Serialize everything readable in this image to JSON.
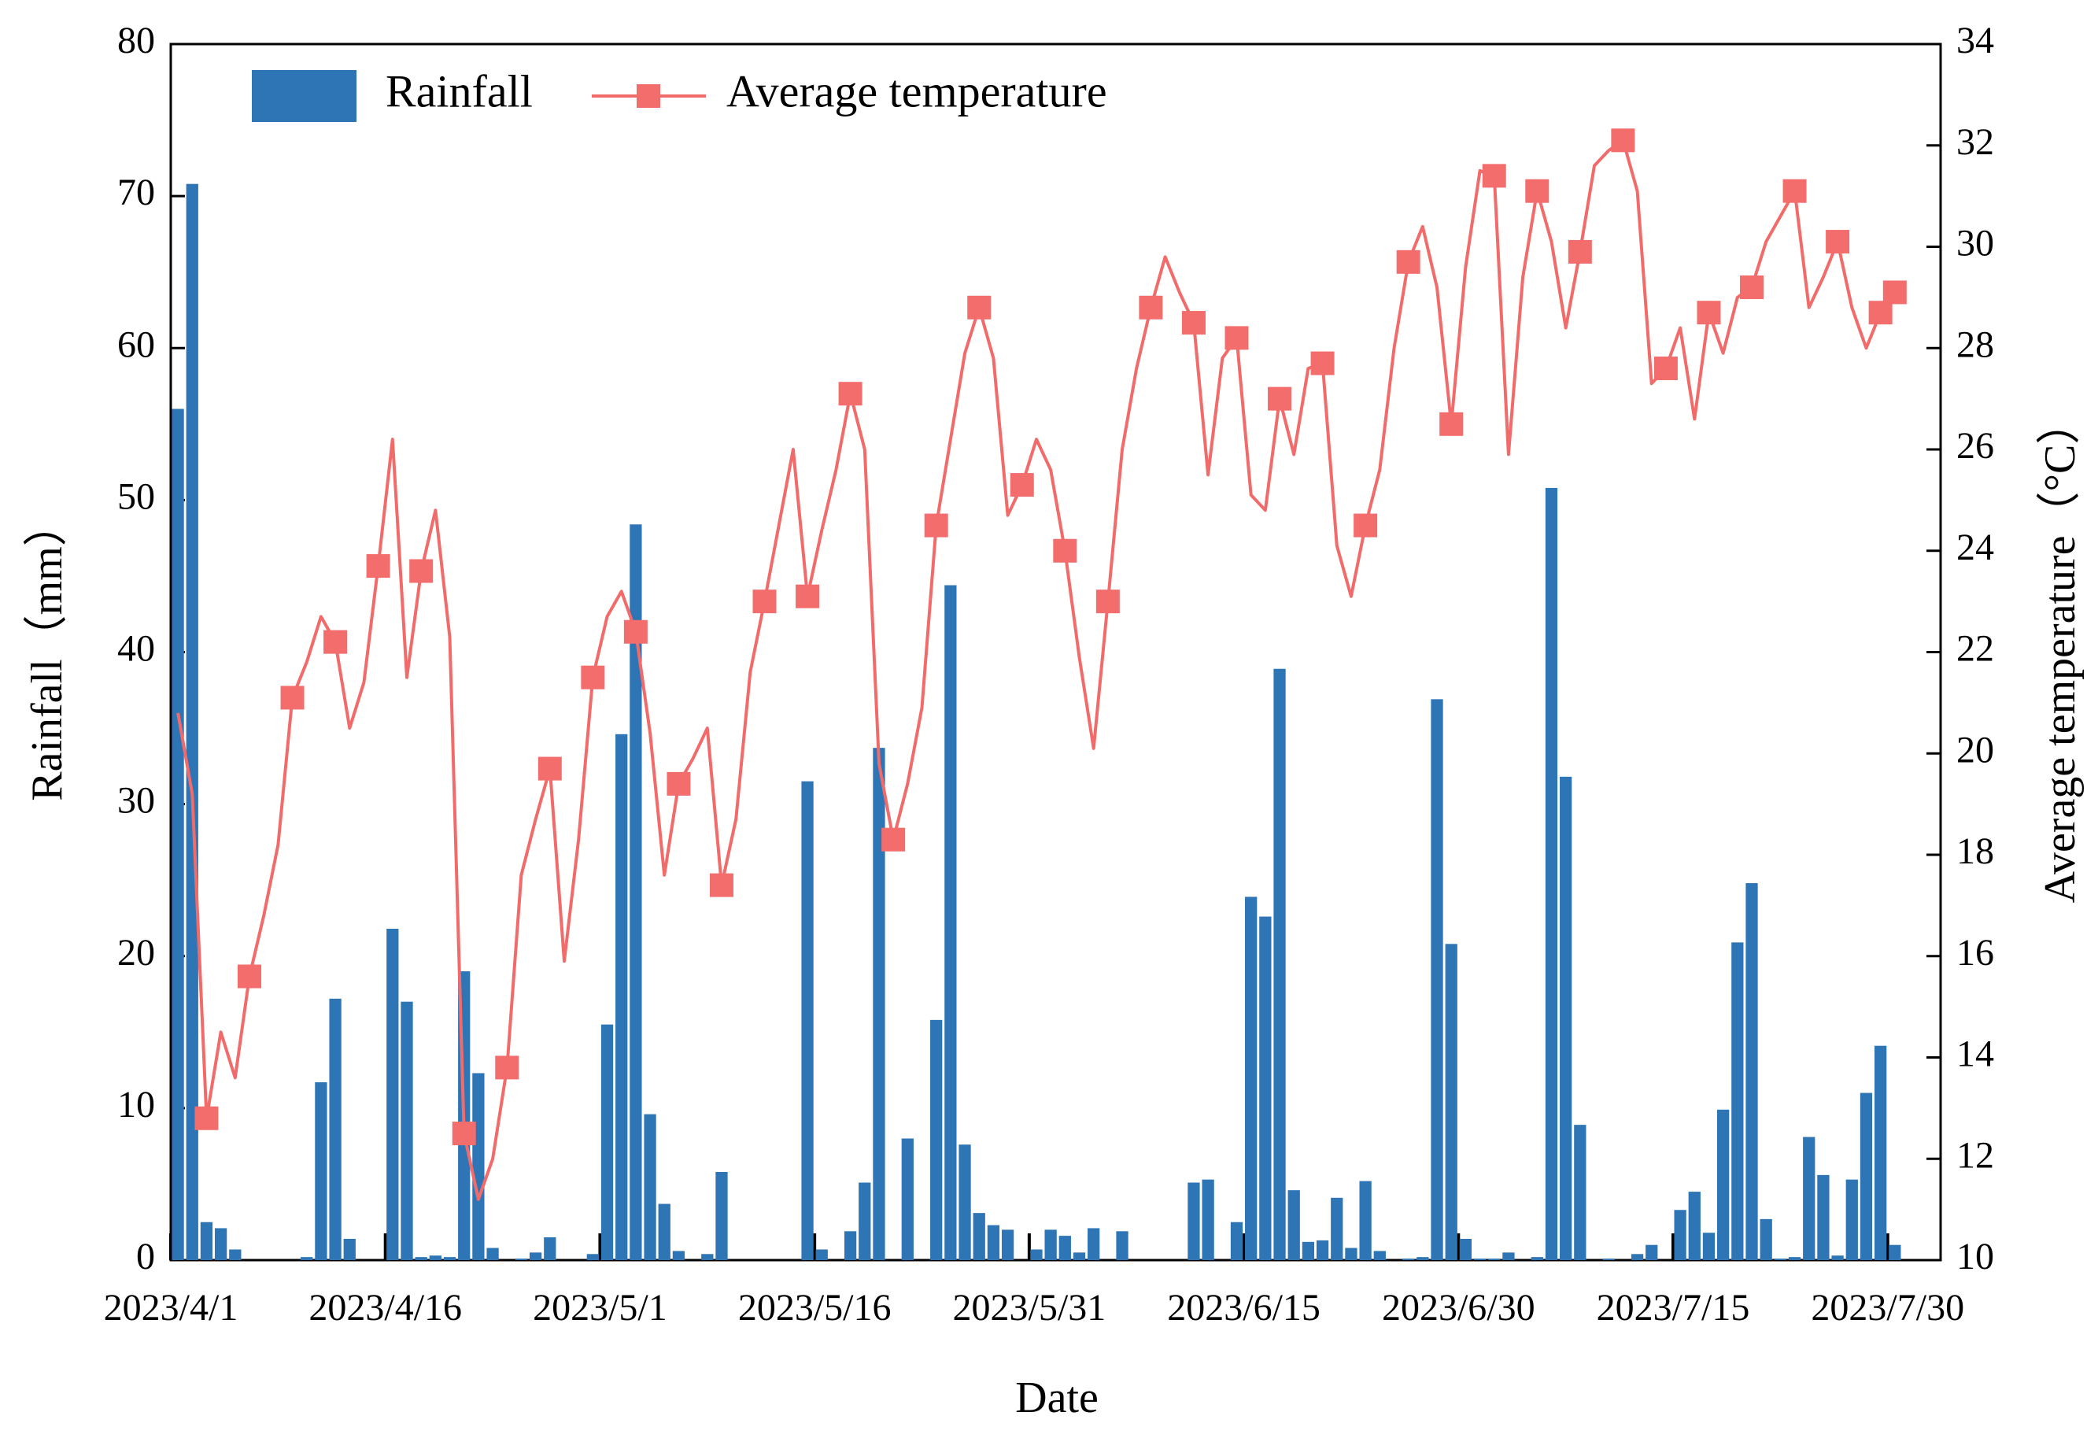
{
  "chart_data": {
    "type": "bar_line",
    "x_label": "Date",
    "y_label": "Rainfall（mm）",
    "y2_label": "Average temperature（°C）",
    "categories": [
      "2023/4/1",
      null,
      null,
      null,
      null,
      null,
      null,
      null,
      null,
      null,
      null,
      null,
      null,
      null,
      null,
      "2023/4/16",
      null,
      null,
      null,
      null,
      null,
      null,
      null,
      null,
      null,
      null,
      null,
      null,
      null,
      null,
      "2023/5/1",
      null,
      null,
      null,
      null,
      null,
      null,
      null,
      null,
      null,
      null,
      null,
      null,
      null,
      null,
      "2023/5/16",
      null,
      null,
      null,
      null,
      null,
      null,
      null,
      null,
      null,
      null,
      null,
      null,
      null,
      null,
      "2023/5/31",
      null,
      null,
      null,
      null,
      null,
      null,
      null,
      null,
      null,
      null,
      null,
      null,
      null,
      null,
      "2023/6/15",
      null,
      null,
      null,
      null,
      null,
      null,
      null,
      null,
      null,
      null,
      null,
      null,
      null,
      null,
      "2023/6/30",
      null,
      null,
      null,
      null,
      null,
      null,
      null,
      null,
      null,
      null,
      null,
      null,
      null,
      null,
      "2023/7/15",
      null,
      null,
      null,
      null,
      null,
      null,
      null,
      null,
      null,
      null,
      null,
      null,
      null,
      null,
      "2023/7/30"
    ],
    "series": [
      {
        "name": "Rainfall",
        "color": "#2e75b6",
        "type": "bar",
        "values": [
          56,
          70.8,
          2.5,
          2.1,
          0.7,
          0,
          0,
          0,
          0,
          0.2,
          11.7,
          17.2,
          1.4,
          0,
          0,
          21.8,
          17.0,
          0.2,
          0.3,
          0.2,
          19.0,
          12.3,
          0.8,
          0,
          0.1,
          0.5,
          1.5,
          0,
          0,
          0.4,
          15.5,
          34.6,
          48.4,
          9.6,
          3.7,
          0.6,
          0,
          0.4,
          5.8,
          0,
          0,
          0,
          0,
          0,
          31.5,
          0.7,
          0,
          1.9,
          5.1,
          33.7,
          0,
          8.0,
          0,
          15.8,
          44.4,
          7.6,
          3.1,
          2.3,
          2.0,
          0,
          0.7,
          2.0,
          1.6,
          0.5,
          2.1,
          0,
          1.9,
          0,
          0,
          0,
          0,
          5.1,
          5.3,
          0,
          2.5,
          23.9,
          22.6,
          38.9,
          4.6,
          1.2,
          1.3,
          4.1,
          0.8,
          5.2,
          0.6,
          0,
          0.1,
          0.2,
          36.9,
          20.8,
          1.4,
          0.1,
          0.1,
          0.5,
          0,
          0.2,
          50.8,
          31.8,
          8.9,
          0,
          0.1,
          0,
          0.4,
          1.0,
          0,
          3.3,
          4.5,
          1.8,
          9.9,
          20.9,
          24.8,
          2.7,
          0.1,
          0.2,
          8.1,
          5.6,
          0.3,
          5.3,
          11.0,
          14.1,
          1.0
        ]
      },
      {
        "name": "Average temperature",
        "color": "#f26b6b",
        "marker_color": "#f46d6d",
        "type": "line",
        "axis": "y2",
        "values": [
          20.8,
          19.2,
          12.8,
          14.5,
          13.6,
          15.6,
          16.8,
          18.2,
          21.1,
          21.8,
          22.7,
          22.2,
          20.5,
          21.4,
          23.7,
          26.2,
          21.5,
          23.6,
          24.8,
          22.3,
          12.5,
          11.2,
          12.0,
          13.8,
          17.6,
          18.7,
          19.7,
          15.9,
          18.3,
          21.5,
          22.7,
          23.2,
          22.4,
          20.4,
          17.6,
          19.4,
          19.9,
          20.5,
          17.4,
          18.7,
          21.6,
          23.0,
          24.5,
          26.0,
          23.1,
          24.4,
          25.6,
          27.1,
          26.0,
          19.8,
          18.3,
          19.4,
          20.9,
          24.5,
          26.2,
          27.9,
          28.8,
          27.8,
          24.7,
          25.3,
          26.2,
          25.6,
          24.0,
          21.9,
          20.1,
          23.0,
          26.0,
          27.6,
          28.8,
          29.8,
          29.1,
          28.5,
          25.5,
          27.8,
          28.2,
          25.1,
          24.8,
          27.0,
          25.9,
          27.6,
          27.7,
          24.1,
          23.1,
          24.5,
          25.6,
          28.0,
          29.7,
          30.4,
          29.2,
          26.5,
          29.6,
          31.5,
          31.4,
          25.9,
          29.4,
          31.1,
          30.1,
          28.4,
          29.9,
          31.6,
          31.9,
          32.1,
          31.1,
          27.3,
          27.6,
          28.4,
          26.6,
          28.7,
          27.9,
          29.0,
          29.2,
          30.1,
          30.6,
          31.1,
          28.8,
          29.4,
          30.1,
          28.8,
          28.0,
          28.7,
          29.1
        ]
      }
    ],
    "ylim": [
      0,
      80
    ],
    "yticks": [
      0,
      10,
      20,
      30,
      40,
      50,
      60,
      70,
      80
    ],
    "y2lim": [
      10,
      34
    ],
    "y2ticks": [
      10,
      12,
      14,
      16,
      18,
      20,
      22,
      24,
      26,
      28,
      30,
      32,
      34
    ],
    "legend": "top-left",
    "grid": false
  }
}
